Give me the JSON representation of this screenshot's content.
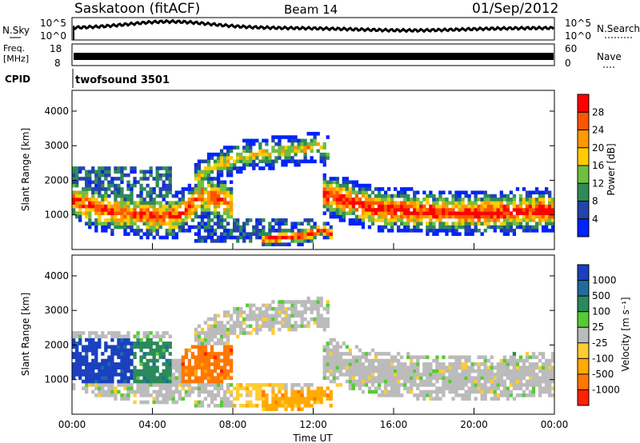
{
  "header": {
    "station": "Saskatoon (fitACF)",
    "beam": "Beam 14",
    "date": "01/Sep/2012"
  },
  "noise_panel": {
    "left_label": "N.Sky",
    "left_ticks": [
      "10^5",
      "10^0"
    ],
    "right_label": "N.Search",
    "right_ticks": [
      "10^5",
      "10^0"
    ]
  },
  "freq_panel": {
    "left_label_top": "Freq.",
    "left_label_bottom": "[MHz]",
    "left_ticks": [
      "18",
      "8"
    ],
    "right_label": "Nave",
    "right_ticks": [
      "60",
      "0"
    ]
  },
  "cpid_panel": {
    "label": "CPID",
    "program": "twofsound 3501"
  },
  "x_axis": {
    "label": "Time UT",
    "ticks": [
      "00:00",
      "04:00",
      "08:00",
      "12:00",
      "16:00",
      "20:00",
      "00:00"
    ]
  },
  "colors": {
    "power_scale": [
      "#0022ff",
      "#2244aa",
      "#2e8b57",
      "#6fbf40",
      "#ffcc00",
      "#ff9900",
      "#ff5500",
      "#ff0000"
    ],
    "velocity_scale": [
      "#1a40c0",
      "#1f6b9c",
      "#2a8a5a",
      "#55cc33",
      "#bbbbbb",
      "#ffcc33",
      "#ffaa00",
      "#ff7700",
      "#ff2200"
    ]
  },
  "chart_data": [
    {
      "type": "heatmap",
      "name": "power",
      "ylabel": "Slant Range [km]",
      "y_ticks": [
        "1000",
        "2000",
        "3000",
        "4000"
      ],
      "ylim": [
        0,
        4600
      ],
      "xlim": [
        0,
        24
      ],
      "colorbar_label": "Power [dB]",
      "colorbar_ticks": [
        "4",
        "8",
        "12",
        "16",
        "20",
        "24",
        "28"
      ],
      "colorbar_range": [
        0,
        32
      ]
    },
    {
      "type": "heatmap",
      "name": "velocity",
      "ylabel": "Slant Range [km]",
      "y_ticks": [
        "1000",
        "2000",
        "3000",
        "4000"
      ],
      "ylim": [
        0,
        4600
      ],
      "xlim": [
        0,
        24
      ],
      "colorbar_label": "Velocity [m s⁻¹]",
      "colorbar_ticks": [
        "1000",
        "500",
        "100",
        "25",
        "-25",
        "-100",
        "-500",
        "-1000"
      ]
    }
  ]
}
